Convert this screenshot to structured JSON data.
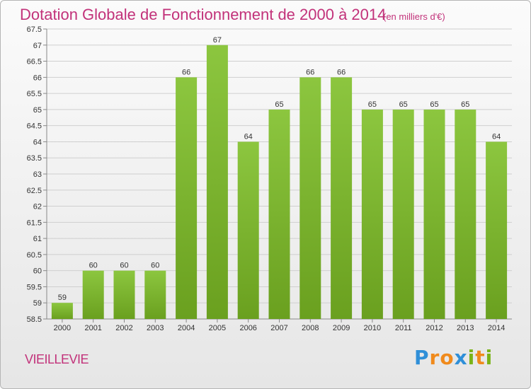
{
  "title": "Dotation Globale de Fonctionnement de 2000 à 2014",
  "subtitle": "(en milliers d'€)",
  "commune": "VIEILLEVIE",
  "logo": {
    "text": "Proxiti",
    "letters": [
      "P",
      "r",
      "o",
      "x",
      "i",
      "t",
      "i"
    ],
    "colors": [
      "#2f8fd8",
      "#f08a1c",
      "#f08a1c",
      "#2f8fd8",
      "#7ab317",
      "#f08a1c",
      "#7ab317"
    ]
  },
  "colors": {
    "bar": "#8cc63f",
    "bar_dark": "#6aa01f",
    "title": "#c2327a",
    "grid": "#cfcfcf"
  },
  "chart_data": {
    "type": "bar",
    "title": "Dotation Globale de Fonctionnement de 2000 à 2014",
    "categories": [
      "2000",
      "2001",
      "2002",
      "2003",
      "2004",
      "2005",
      "2006",
      "2007",
      "2008",
      "2009",
      "2010",
      "2011",
      "2012",
      "2013",
      "2014"
    ],
    "values": [
      59,
      60,
      60,
      60,
      66,
      67,
      64,
      65,
      66,
      66,
      65,
      65,
      65,
      65,
      64
    ],
    "ylim": [
      58.5,
      67.5
    ],
    "ytick_step": 0.5,
    "grid": true,
    "xlabel": "",
    "ylabel": ""
  }
}
